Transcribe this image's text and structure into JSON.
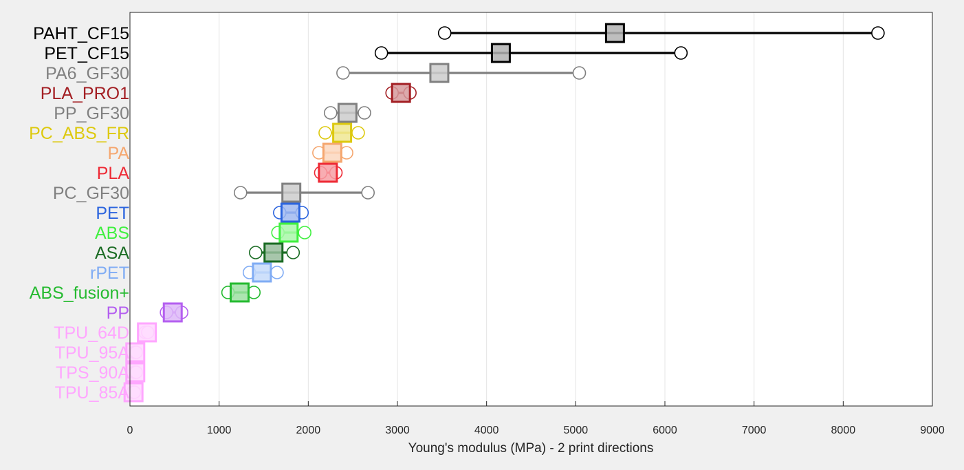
{
  "chart_data": {
    "type": "scatter",
    "title": "",
    "xlabel": "Young's modulus (MPa) - 2 print directions",
    "ylabel": "",
    "xlim": [
      0,
      9000
    ],
    "xticks": [
      0,
      1000,
      2000,
      3000,
      4000,
      5000,
      6000,
      7000,
      8000,
      9000
    ],
    "grid": "vertical",
    "legend": "none",
    "series": [
      {
        "name": "PAHT_CF15",
        "color": "#000000",
        "dir_a": 3530,
        "dir_b": 8390,
        "mean": 5440
      },
      {
        "name": "PET_CF15",
        "color": "#000000",
        "dir_a": 2820,
        "dir_b": 6180,
        "mean": 4160
      },
      {
        "name": "PA6_GF30",
        "color": "#808080",
        "dir_a": 2390,
        "dir_b": 5040,
        "mean": 3470
      },
      {
        "name": "PLA_PRO1",
        "color": "#a31f24",
        "dir_a": 2940,
        "dir_b": 3140,
        "mean": 3040
      },
      {
        "name": "PP_GF30",
        "color": "#808080",
        "dir_a": 2250,
        "dir_b": 2630,
        "mean": 2440
      },
      {
        "name": "PC_ABS_FR",
        "color": "#ddc90e",
        "dir_a": 2190,
        "dir_b": 2560,
        "mean": 2380
      },
      {
        "name": "PA",
        "color": "#f5a66e",
        "dir_a": 2120,
        "dir_b": 2430,
        "mean": 2270
      },
      {
        "name": "PLA",
        "color": "#ee2a35",
        "dir_a": 2140,
        "dir_b": 2310,
        "mean": 2220
      },
      {
        "name": "PC_GF30",
        "color": "#808080",
        "dir_a": 1240,
        "dir_b": 2670,
        "mean": 1810
      },
      {
        "name": "PET",
        "color": "#2b64de",
        "dir_a": 1680,
        "dir_b": 1930,
        "mean": 1800
      },
      {
        "name": "ABS",
        "color": "#3ff03f",
        "dir_a": 1660,
        "dir_b": 1960,
        "mean": 1780
      },
      {
        "name": "ASA",
        "color": "#1a6b23",
        "dir_a": 1410,
        "dir_b": 1830,
        "mean": 1610
      },
      {
        "name": "rPET",
        "color": "#80acf4",
        "dir_a": 1340,
        "dir_b": 1650,
        "mean": 1480
      },
      {
        "name": "ABS_fusion+",
        "color": "#25ba30",
        "dir_a": 1100,
        "dir_b": 1390,
        "mean": 1230
      },
      {
        "name": "PP",
        "color": "#b45ff0",
        "dir_a": 410,
        "dir_b": 580,
        "mean": 480
      },
      {
        "name": "TPU_64D",
        "color": "#ffa6ff",
        "dir_a": 170,
        "dir_b": 200,
        "mean": 190
      },
      {
        "name": "TPU_95A",
        "color": "#ffa6ff",
        "dir_a": 50,
        "dir_b": 70,
        "mean": 60
      },
      {
        "name": "TPS_90A",
        "color": "#ffa6ff",
        "dir_a": 50,
        "dir_b": 70,
        "mean": 60
      },
      {
        "name": "TPU_85A",
        "color": "#ffa6ff",
        "dir_a": 30,
        "dir_b": 50,
        "mean": 40
      }
    ]
  }
}
